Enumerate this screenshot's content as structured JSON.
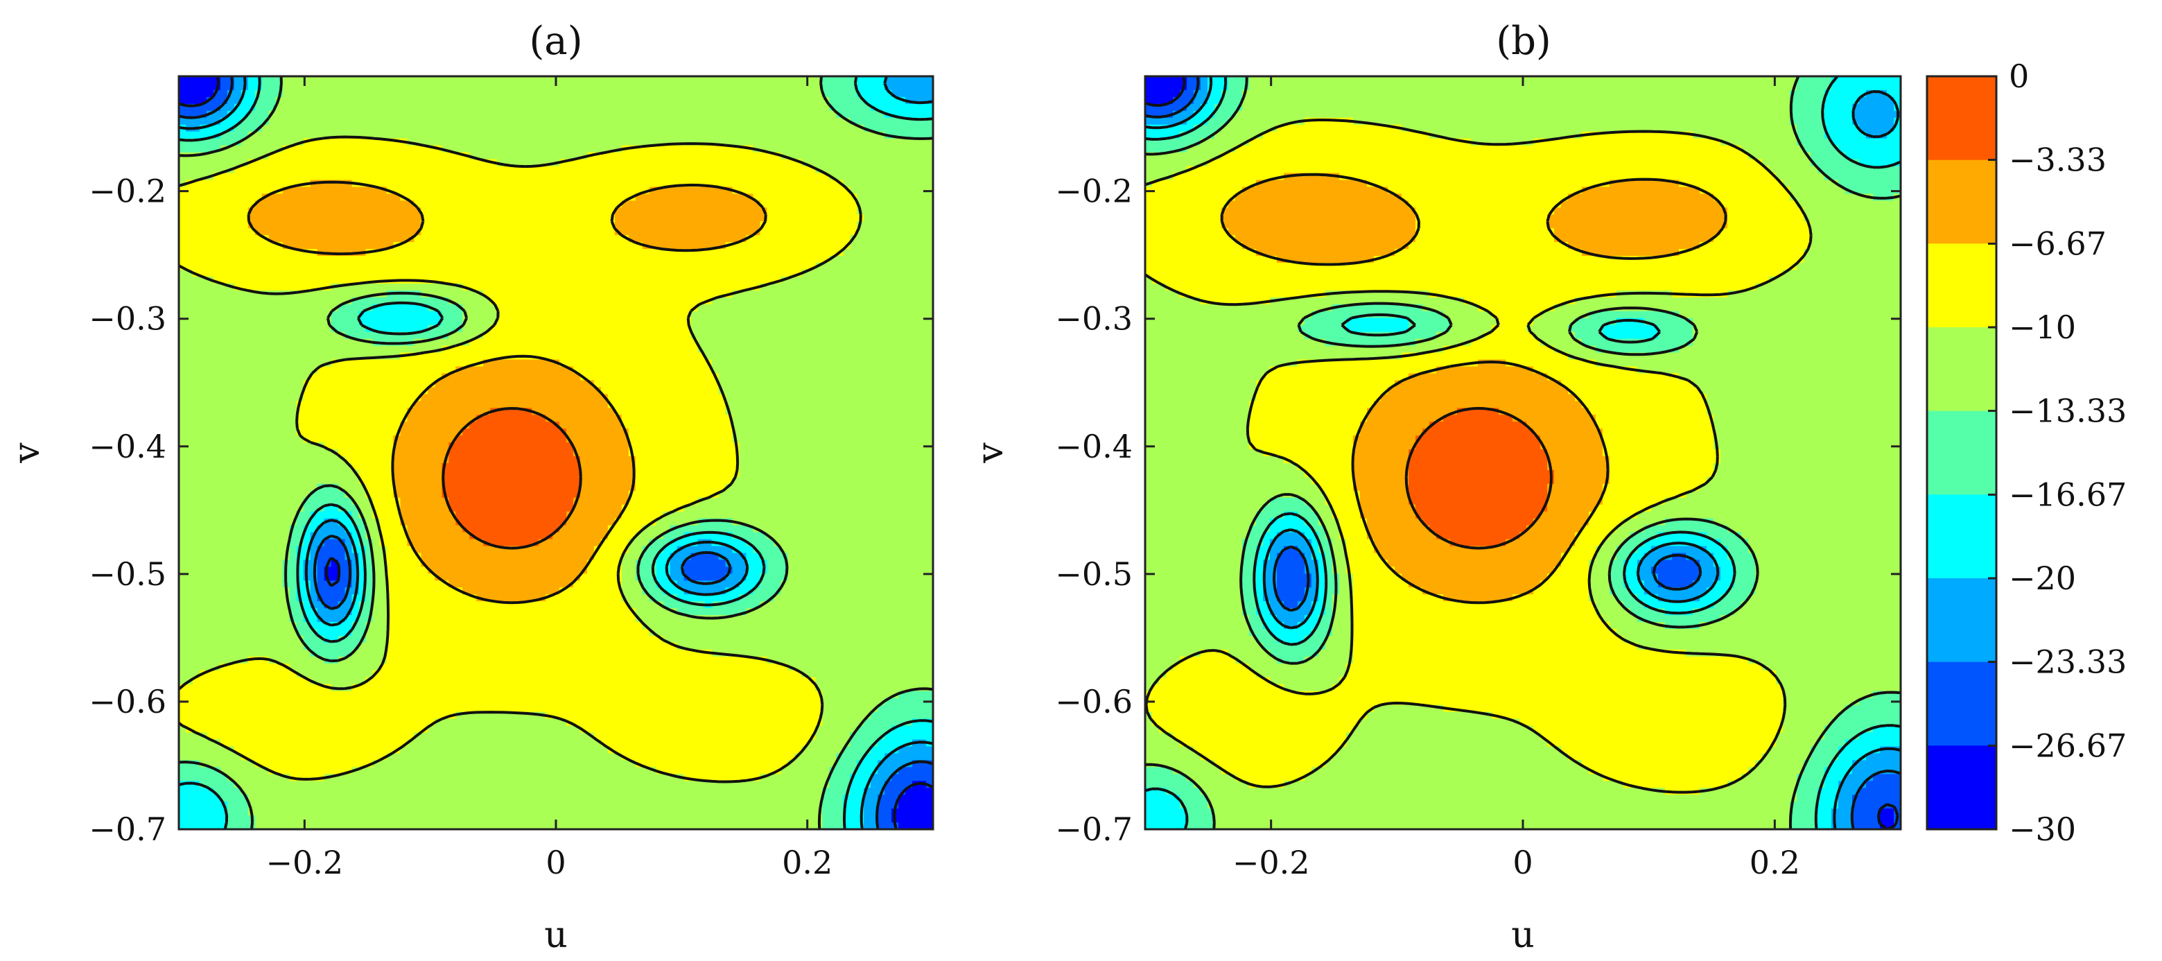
{
  "chart_data": [
    {
      "type": "heatmap",
      "subtype": "filled-contour",
      "title": "(a)",
      "xlabel": "u",
      "ylabel": "v",
      "xlim": [
        -0.3,
        0.3
      ],
      "ylim": [
        -0.7,
        -0.11
      ],
      "xticks": [
        -0.2,
        0,
        0.2
      ],
      "xtick_labels": [
        "−0.2",
        "0",
        "0.2"
      ],
      "yticks": [
        -0.2,
        -0.3,
        -0.4,
        -0.5,
        -0.6,
        -0.7
      ],
      "ytick_labels": [
        "−0.2",
        "−0.3",
        "−0.4",
        "−0.5",
        "−0.6",
        "−0.7"
      ],
      "grid": false,
      "features": [
        {
          "kind": "peak",
          "u": -0.035,
          "v": -0.425,
          "value": -1.5,
          "sx": 0.085,
          "sy": 0.085
        },
        {
          "kind": "ridge-ring",
          "u": -0.035,
          "v": -0.425,
          "radius": 0.1,
          "value": -12
        },
        {
          "kind": "lobe",
          "u": -0.18,
          "v": -0.22,
          "value": -5,
          "sx": 0.08,
          "sy": 0.033
        },
        {
          "kind": "lobe",
          "u": 0.11,
          "v": -0.22,
          "value": -5,
          "sx": 0.07,
          "sy": 0.03
        },
        {
          "kind": "lobe",
          "u": -0.22,
          "v": -0.615,
          "value": -7.5,
          "sx": 0.06,
          "sy": 0.03
        },
        {
          "kind": "lobe",
          "u": 0.14,
          "v": -0.615,
          "value": -7.5,
          "sx": 0.06,
          "sy": 0.03
        },
        {
          "kind": "trough",
          "u": -0.177,
          "v": -0.497,
          "value": -29,
          "sx": 0.02,
          "sy": 0.04
        },
        {
          "kind": "trough",
          "u": 0.117,
          "v": -0.495,
          "value": -27,
          "sx": 0.035,
          "sy": 0.022
        },
        {
          "kind": "trough",
          "u": -0.12,
          "v": -0.3,
          "value": -22,
          "sx": 0.04,
          "sy": 0.015
        },
        {
          "kind": "trough",
          "u": -0.29,
          "v": -0.115,
          "value": -30,
          "sx": 0.035,
          "sy": 0.03
        },
        {
          "kind": "trough",
          "u": 0.29,
          "v": -0.115,
          "value": -22,
          "sx": 0.045,
          "sy": 0.025
        },
        {
          "kind": "trough",
          "u": 0.29,
          "v": -0.69,
          "value": -29,
          "sx": 0.04,
          "sy": 0.05
        },
        {
          "kind": "trough",
          "u": -0.29,
          "v": -0.69,
          "value": -20,
          "sx": 0.03,
          "sy": 0.03
        }
      ]
    },
    {
      "type": "heatmap",
      "subtype": "filled-contour",
      "title": "(b)",
      "xlabel": "u",
      "ylabel": "v",
      "xlim": [
        -0.3,
        0.3
      ],
      "ylim": [
        -0.7,
        -0.11
      ],
      "xticks": [
        -0.2,
        0,
        0.2
      ],
      "xtick_labels": [
        "−0.2",
        "0",
        "0.2"
      ],
      "yticks": [
        -0.2,
        -0.3,
        -0.4,
        -0.5,
        -0.6,
        -0.7
      ],
      "ytick_labels": [
        "−0.2",
        "−0.3",
        "−0.4",
        "−0.5",
        "−0.6",
        "−0.7"
      ],
      "grid": false,
      "features": [
        {
          "kind": "peak",
          "u": -0.035,
          "v": -0.425,
          "value": -1.5,
          "sx": 0.09,
          "sy": 0.085
        },
        {
          "kind": "ridge-ring",
          "u": -0.035,
          "v": -0.425,
          "radius": 0.1,
          "value": -12
        },
        {
          "kind": "lobe",
          "u": -0.17,
          "v": -0.22,
          "value": -5,
          "sx": 0.085,
          "sy": 0.04
        },
        {
          "kind": "lobe",
          "u": 0.1,
          "v": -0.22,
          "value": -5,
          "sx": 0.075,
          "sy": 0.035
        },
        {
          "kind": "lobe",
          "u": -0.225,
          "v": -0.615,
          "value": -7.5,
          "sx": 0.05,
          "sy": 0.035
        },
        {
          "kind": "lobe",
          "u": 0.13,
          "v": -0.615,
          "value": -7.5,
          "sx": 0.06,
          "sy": 0.035
        },
        {
          "kind": "trough",
          "u": -0.183,
          "v": -0.502,
          "value": -28,
          "sx": 0.022,
          "sy": 0.04
        },
        {
          "kind": "trough",
          "u": 0.12,
          "v": -0.498,
          "value": -27,
          "sx": 0.035,
          "sy": 0.025
        },
        {
          "kind": "trough",
          "u": -0.11,
          "v": -0.305,
          "value": -21,
          "sx": 0.05,
          "sy": 0.015
        },
        {
          "kind": "trough",
          "u": 0.08,
          "v": -0.31,
          "value": -20,
          "sx": 0.04,
          "sy": 0.015
        },
        {
          "kind": "trough",
          "u": -0.29,
          "v": -0.115,
          "value": -30,
          "sx": 0.035,
          "sy": 0.03
        },
        {
          "kind": "trough",
          "u": 0.28,
          "v": -0.14,
          "value": -21,
          "sx": 0.04,
          "sy": 0.04
        },
        {
          "kind": "trough",
          "u": 0.29,
          "v": -0.69,
          "value": -27,
          "sx": 0.04,
          "sy": 0.05
        },
        {
          "kind": "trough",
          "u": -0.29,
          "v": -0.69,
          "value": -19,
          "sx": 0.03,
          "sy": 0.03
        }
      ]
    }
  ],
  "colorbar": {
    "levels": [
      0,
      -3.33,
      -6.67,
      -10,
      -13.33,
      -16.67,
      -20,
      -23.33,
      -26.67,
      -30
    ],
    "labels": [
      "0",
      "−3.33",
      "−6.67",
      "−10",
      "−13.33",
      "−16.67",
      "−20",
      "−23.33",
      "−26.67",
      "−30"
    ],
    "colors": [
      "#ff5a00",
      "#ffaa00",
      "#ffff00",
      "#aaff55",
      "#55ffaa",
      "#00ffff",
      "#00aaff",
      "#0055ff",
      "#0000ff"
    ]
  },
  "base_value": -11
}
